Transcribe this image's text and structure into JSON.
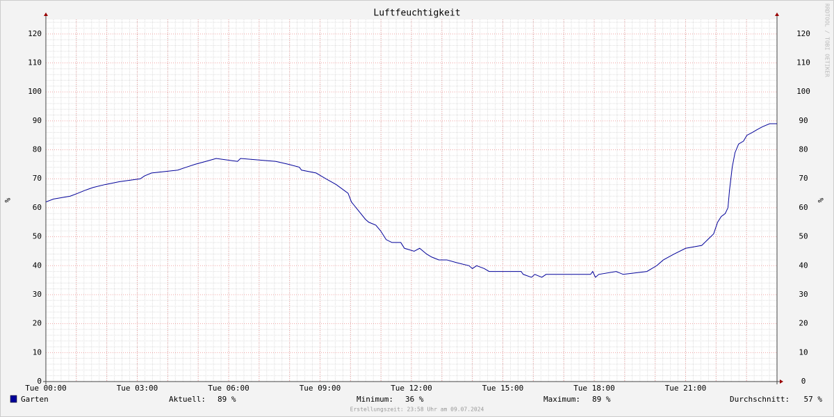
{
  "chart_data": {
    "type": "line",
    "title": "Luftfeuchtigkeit",
    "y_label": "%",
    "watermark": "RRDTOOL / TOBI OETIKER",
    "xlim": [
      0,
      24
    ],
    "ylim": [
      0,
      125
    ],
    "xticks": [
      {
        "value": 0,
        "label": "Tue 00:00"
      },
      {
        "value": 3,
        "label": "Tue 03:00"
      },
      {
        "value": 6,
        "label": "Tue 06:00"
      },
      {
        "value": 9,
        "label": "Tue 09:00"
      },
      {
        "value": 12,
        "label": "Tue 12:00"
      },
      {
        "value": 15,
        "label": "Tue 15:00"
      },
      {
        "value": 18,
        "label": "Tue 18:00"
      },
      {
        "value": 21,
        "label": "Tue 21:00"
      }
    ],
    "yticks": [
      0,
      10,
      20,
      30,
      40,
      50,
      60,
      70,
      80,
      90,
      100,
      110,
      120
    ],
    "grid": true,
    "series": [
      {
        "name": "Garten",
        "color": "#000099",
        "x": [
          0,
          0.25,
          0.8,
          1.05,
          1.28,
          1.55,
          1.94,
          2.42,
          3.1,
          3.24,
          3.47,
          4.33,
          4.61,
          4.9,
          5.25,
          5.59,
          6.29,
          6.39,
          7.55,
          7.96,
          8.32,
          8.39,
          8.87,
          9.03,
          9.19,
          9.53,
          9.92,
          10.03,
          10.26,
          10.49,
          10.6,
          10.83,
          10.99,
          11.17,
          11.36,
          11.65,
          11.77,
          12.09,
          12.27,
          12.5,
          12.66,
          12.9,
          13.16,
          13.5,
          13.89,
          14.0,
          14.14,
          14.39,
          14.55,
          15.6,
          15.67,
          15.94,
          16.05,
          16.28,
          16.42,
          17.88,
          17.95,
          18.04,
          18.15,
          18.72,
          18.95,
          19.73,
          20.05,
          20.27,
          20.62,
          21.0,
          21.53,
          21.92,
          22.05,
          22.17,
          22.3,
          22.39,
          22.44,
          22.53,
          22.62,
          22.74,
          22.9,
          23.01,
          23.19,
          23.35,
          23.53,
          23.76,
          24
        ],
        "values": [
          62,
          63,
          64,
          65,
          66,
          67,
          68,
          69,
          70,
          71,
          72,
          73,
          74,
          75,
          76,
          77,
          76,
          77,
          76,
          75,
          74,
          73,
          72,
          71,
          70,
          68,
          65,
          62,
          59,
          56,
          55,
          54,
          52,
          49,
          48,
          48,
          46,
          45,
          46,
          44,
          43,
          42,
          42,
          41,
          40,
          39,
          40,
          39,
          38,
          38,
          37,
          36,
          37,
          36,
          37,
          37,
          38,
          36,
          37,
          38,
          37,
          38,
          40,
          42,
          44,
          46,
          47,
          51,
          55,
          57,
          58,
          60,
          66,
          74,
          79,
          82,
          83,
          85,
          86,
          87,
          88,
          89,
          89
        ]
      }
    ],
    "stats": [
      {
        "label": "Aktuell:",
        "value": "89 %"
      },
      {
        "label": "Minimum:",
        "value": "36 %"
      },
      {
        "label": "Maximum:",
        "value": "89 %"
      },
      {
        "label": "Durchschnitt:",
        "value": "57 %"
      }
    ],
    "footer": "Erstellungszeit: 23:58 Uhr am 09.07.2024"
  }
}
